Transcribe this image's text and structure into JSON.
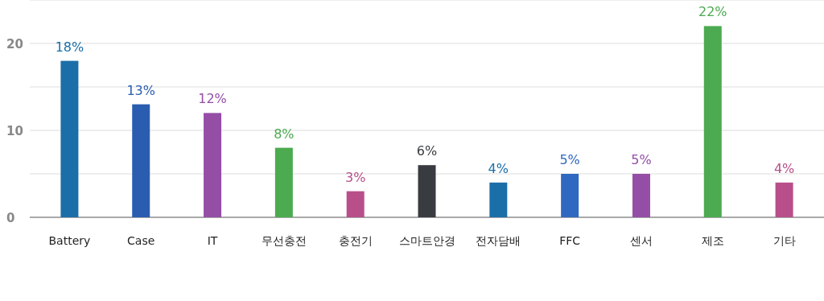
{
  "chart_data": {
    "type": "bar",
    "categories": [
      "Battery",
      "Case",
      "IT",
      "무선충전",
      "충전기",
      "스마트안경",
      "전자담배",
      "FFC",
      "센서",
      "제조",
      "기타"
    ],
    "values": [
      18,
      13,
      12,
      8,
      3,
      6,
      4,
      5,
      5,
      22,
      4
    ],
    "colors": [
      "#1b6fa8",
      "#2a5db0",
      "#944ea6",
      "#4caa50",
      "#b84f8a",
      "#383c40",
      "#1b6fa8",
      "#2f68c0",
      "#944ea6",
      "#4caa50",
      "#b84f8a"
    ],
    "value_labels": [
      "18%",
      "13%",
      "12%",
      "8%",
      "3%",
      "6%",
      "4%",
      "5%",
      "5%",
      "22%",
      "4%"
    ],
    "ylim": [
      0,
      25
    ],
    "yticks": [
      0,
      {
        "value": 5,
        "label": null
      },
      10,
      {
        "value": 15,
        "label": null
      },
      20,
      {
        "value": 25,
        "label": null
      }
    ],
    "grid": "y"
  }
}
